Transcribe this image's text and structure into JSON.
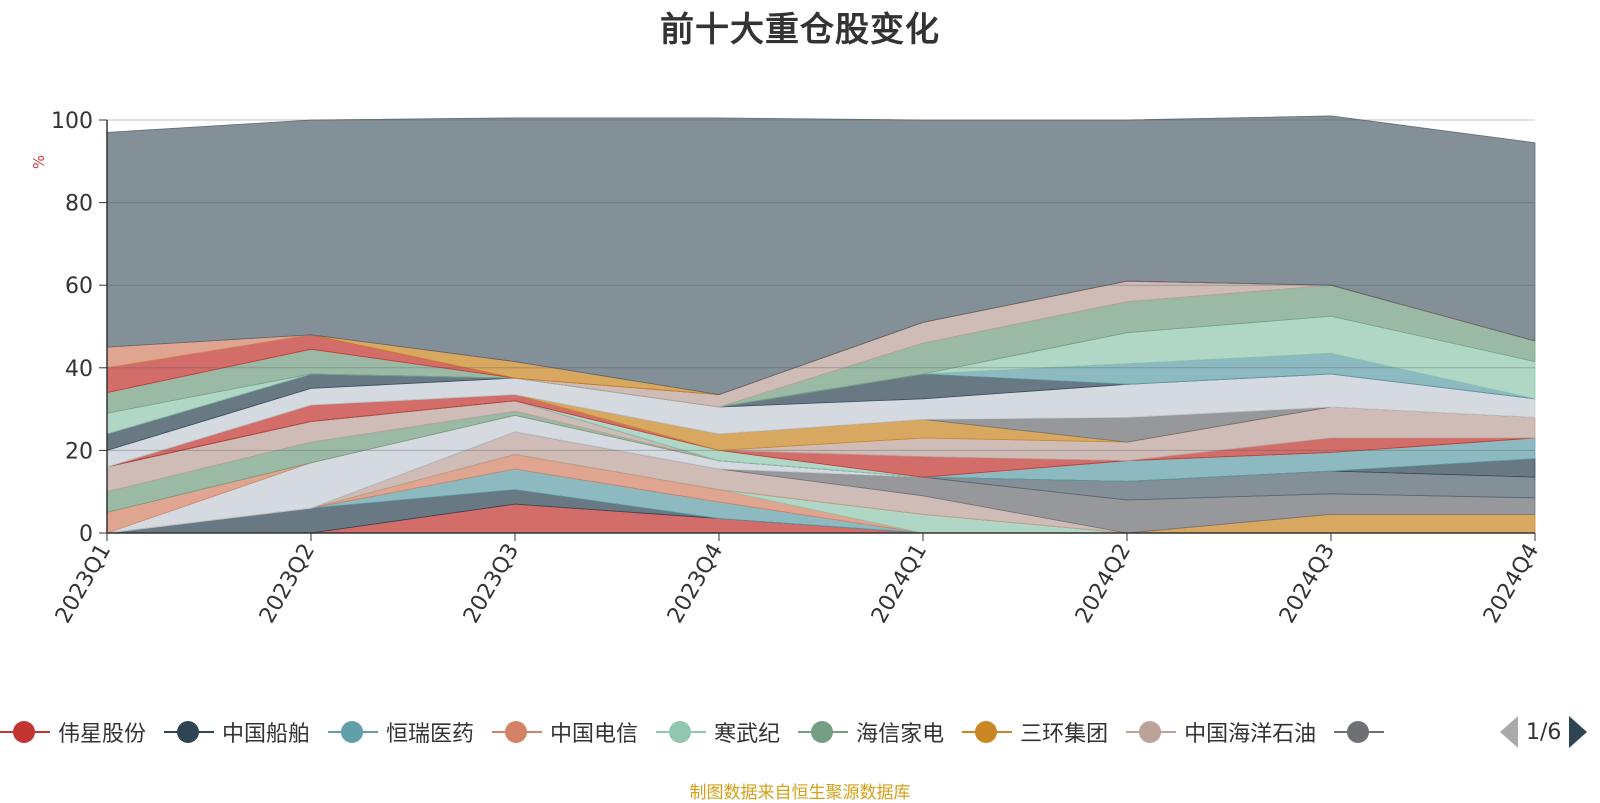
{
  "chart_data": {
    "type": "area",
    "title": "前十大重仓股变化",
    "ylabel": "%",
    "ylim": [
      0,
      100
    ],
    "yticks": [
      0,
      20,
      40,
      60,
      80,
      100
    ],
    "grid": true,
    "stacked": true,
    "categories": [
      "2023Q1",
      "2023Q2",
      "2023Q3",
      "2023Q4",
      "2024Q1",
      "2024Q2",
      "2024Q3",
      "2024Q4"
    ],
    "series": [
      {
        "name": "伟星股份",
        "color": "#c23531",
        "values": [
          0,
          0,
          7,
          3.5,
          0,
          0,
          0,
          0
        ]
      },
      {
        "name": "中国船舶",
        "color": "#2f4554",
        "values": [
          0,
          6,
          3.5,
          0,
          0,
          0,
          0,
          0
        ]
      },
      {
        "name": "恒瑞医药",
        "color": "#61a0a8",
        "values": [
          0,
          0,
          5,
          4,
          0,
          0,
          0,
          0
        ]
      },
      {
        "name": "中国电信",
        "color": "#d48265",
        "values": [
          0,
          0,
          3.5,
          3,
          0,
          0,
          0,
          0
        ]
      },
      {
        "name": "寒武纪",
        "color": "#91c7ae",
        "values": [
          0,
          0,
          0,
          0,
          4.5,
          0,
          0,
          0
        ]
      },
      {
        "name": "海信家电",
        "color": "#749f83",
        "values": [
          0,
          0,
          0,
          0,
          0,
          0,
          0,
          0
        ]
      },
      {
        "name": "三环集团",
        "color": "#ca8622",
        "values": [
          0,
          0,
          0,
          0,
          0,
          0,
          4.5,
          4.5
        ]
      },
      {
        "name": "中国海洋石油",
        "color": "#bda29a",
        "values": [
          0,
          0,
          5.5,
          5,
          4.5,
          0,
          0,
          0
        ]
      },
      {
        "name": "",
        "color": "#6e7074",
        "values": [
          0,
          0,
          0,
          0,
          4.5,
          8,
          5,
          4
        ]
      },
      {
        "name": "",
        "color": "#546570",
        "values": [
          0,
          0,
          0,
          0,
          0,
          4.5,
          5.5,
          5
        ]
      },
      {
        "name": "",
        "color": "#c4ccd3",
        "values": [
          0,
          11,
          4,
          2,
          0,
          0,
          0,
          0
        ]
      },
      {
        "name": "",
        "color": "#d48265",
        "values": [
          5,
          0,
          0,
          0,
          0,
          0,
          0,
          0
        ]
      },
      {
        "name": "",
        "color": "#749f83",
        "values": [
          5,
          5,
          1,
          0,
          0,
          0,
          0,
          0
        ]
      },
      {
        "name": "",
        "color": "#bda29a",
        "values": [
          6,
          5,
          2.5,
          0,
          0,
          0,
          0,
          0
        ]
      },
      {
        "name": "",
        "color": "#2f4554",
        "values": [
          0,
          0,
          0,
          0,
          0,
          0,
          0,
          4.5
        ]
      },
      {
        "name": "",
        "color": "#61a0a8",
        "values": [
          0,
          0,
          0,
          0,
          0,
          5,
          4.5,
          5
        ]
      },
      {
        "name": "",
        "color": "#91c7ae",
        "values": [
          0,
          0,
          0,
          2.5,
          0,
          0,
          0,
          0
        ]
      },
      {
        "name": "",
        "color": "#c23531",
        "values": [
          0,
          4,
          1.5,
          0,
          5,
          0,
          3.5,
          0
        ]
      },
      {
        "name": "",
        "color": "#bda29a",
        "values": [
          0,
          0,
          0,
          0,
          4.5,
          4.5,
          7.5,
          5
        ]
      },
      {
        "name": "",
        "color": "#ca8622",
        "values": [
          0,
          0,
          0,
          4,
          4.5,
          0,
          0,
          0
        ]
      },
      {
        "name": "",
        "color": "#6e7074",
        "values": [
          0,
          0,
          0,
          0,
          0,
          6,
          0,
          0
        ]
      },
      {
        "name": "",
        "color": "#c4ccd3",
        "values": [
          4,
          4,
          4,
          6.5,
          5,
          8,
          8,
          4.5
        ]
      },
      {
        "name": "",
        "color": "#2f4554",
        "values": [
          4,
          3.5,
          0,
          0,
          6,
          0,
          0,
          0
        ]
      },
      {
        "name": "",
        "color": "#61a0a8",
        "values": [
          0,
          0,
          0,
          0,
          0,
          5,
          5,
          0
        ]
      },
      {
        "name": "",
        "color": "#91c7ae",
        "values": [
          5,
          0,
          0,
          0,
          0,
          7.5,
          9,
          9
        ]
      },
      {
        "name": "",
        "color": "#749f83",
        "values": [
          5,
          6,
          0,
          0,
          7.5,
          7.5,
          7.5,
          5
        ]
      },
      {
        "name": "",
        "color": "#bda29a",
        "values": [
          0,
          0,
          0,
          3,
          5,
          5,
          0,
          0
        ]
      },
      {
        "name": "",
        "color": "#c23531",
        "values": [
          6,
          3.5,
          0,
          0,
          0,
          0,
          0,
          0
        ]
      },
      {
        "name": "",
        "color": "#ca8622",
        "values": [
          0,
          0,
          4,
          0,
          0,
          0,
          0,
          0
        ]
      },
      {
        "name": "",
        "color": "#d48265",
        "values": [
          5,
          0,
          0,
          0,
          0,
          0,
          0,
          0
        ]
      },
      {
        "name": "",
        "color": "#546570",
        "values": [
          52,
          52,
          59,
          67,
          49,
          39,
          41,
          48
        ]
      }
    ]
  },
  "legend": {
    "items": [
      {
        "label": "伟星股份",
        "color": "#c23531"
      },
      {
        "label": "中国船舶",
        "color": "#2f4554"
      },
      {
        "label": "恒瑞医药",
        "color": "#61a0a8"
      },
      {
        "label": "中国电信",
        "color": "#d48265"
      },
      {
        "label": "寒武纪",
        "color": "#91c7ae"
      },
      {
        "label": "海信家电",
        "color": "#749f83"
      },
      {
        "label": "三环集团",
        "color": "#ca8622"
      },
      {
        "label": "中国海洋石油",
        "color": "#bda29a"
      },
      {
        "label": "",
        "color": "#6e7074"
      }
    ],
    "page_text": "1/6"
  },
  "source_note": "制图数据来自恒生聚源数据库"
}
